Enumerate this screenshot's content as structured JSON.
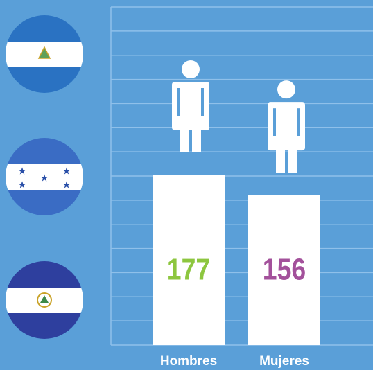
{
  "chart_data": {
    "type": "bar",
    "categories": [
      "Hombres",
      "Mujeres"
    ],
    "values": [
      177,
      156
    ],
    "color": "#ffffff",
    "value_colors": [
      "#8dc63f",
      "#a3519b"
    ]
  }
}
